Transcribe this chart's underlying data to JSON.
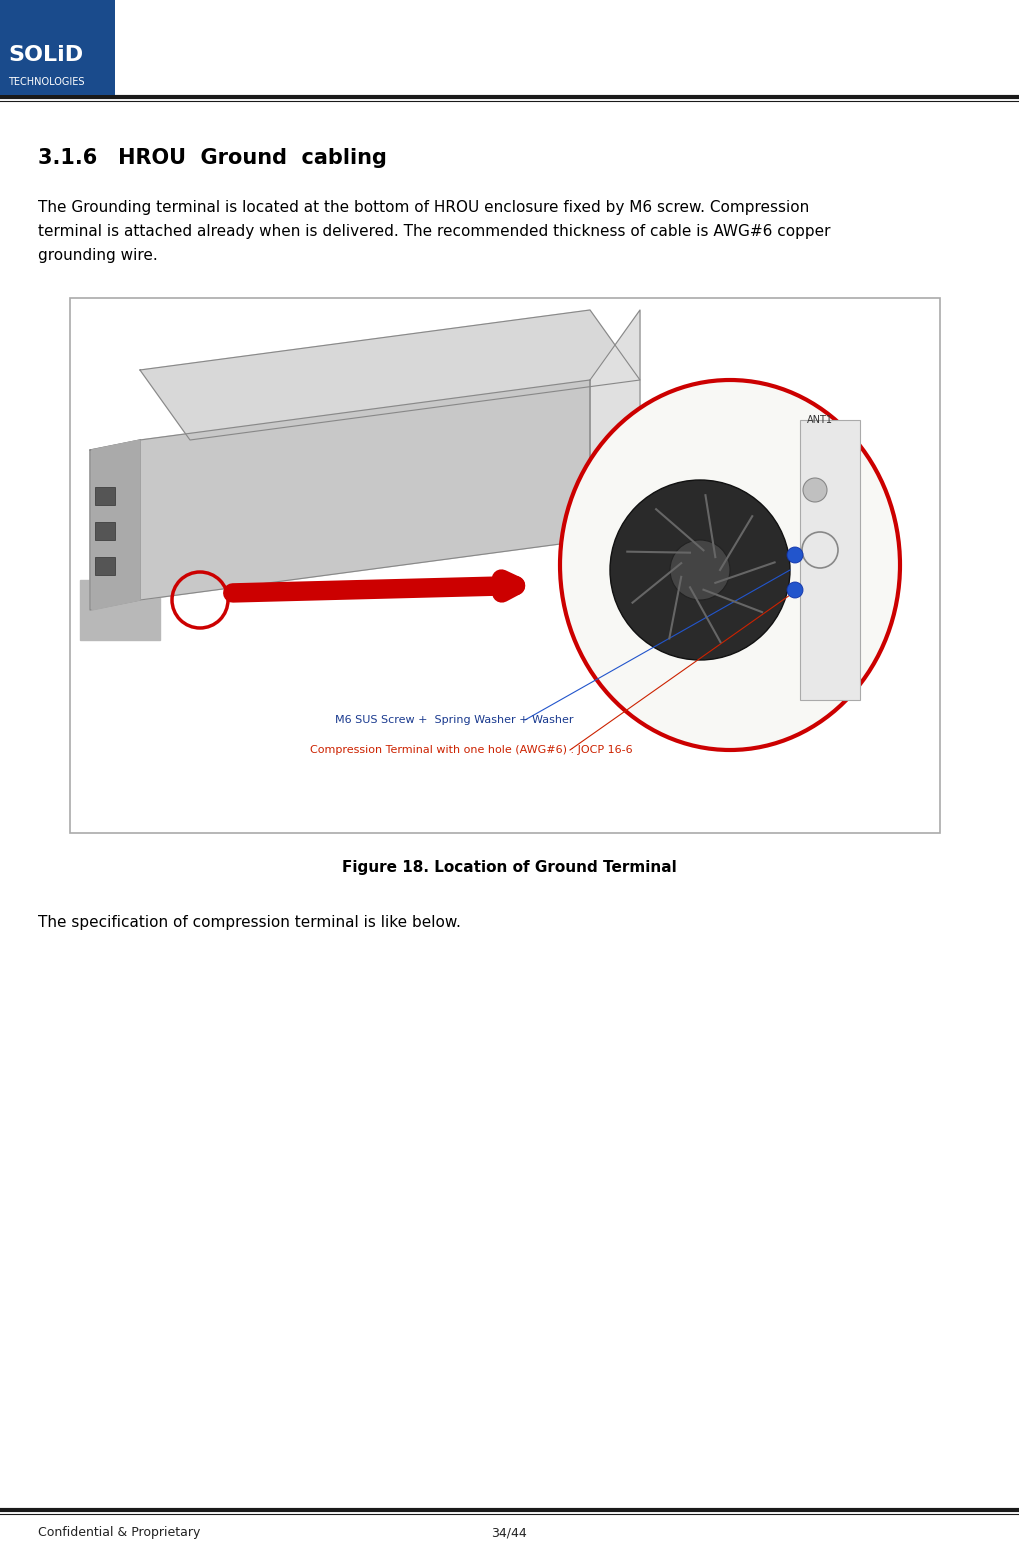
{
  "page_width": 10.19,
  "page_height": 15.63,
  "dpi": 100,
  "bg_color": "#ffffff",
  "header_logo_box_color": "#1a4b8c",
  "header_line_color": "#1a1a1a",
  "footer_line_color": "#1a1a1a",
  "footer_text_left": "Confidential & Proprietary",
  "footer_text_center": "34/44",
  "footer_fontsize": 9,
  "solid_text": "SOLiD",
  "technologies_text": "TECHNOLOGIES",
  "logo_fontsize": 16,
  "tech_fontsize": 7,
  "section_title": "3.1.6 HROU  Ground  cabling",
  "section_title_fontsize": 15,
  "body_text_1": "The Grounding terminal is located at the bottom of HROU enclosure fixed by M6 screw. Compression\nterminal is attached already when is delivered. The recommended thickness of cable is AWG#6 copper\ngrounding wire.",
  "body_text_fontsize": 11,
  "figure_caption": "Figure 18. Location of Ground Terminal",
  "figure_caption_fontsize": 11,
  "spec_text": "The specification of compression terminal is like below.",
  "spec_text_fontsize": 11,
  "annot1": "M6 SUS Screw +  Spring Washer + Washer",
  "annot2": "Compression Terminal with one hole (AWG#6) : JOCP 16-6",
  "annot_color1": "#1a3a8f",
  "annot_color2": "#cc2200",
  "red_arrow_color": "#cc0000",
  "red_circle_color": "#cc0000"
}
